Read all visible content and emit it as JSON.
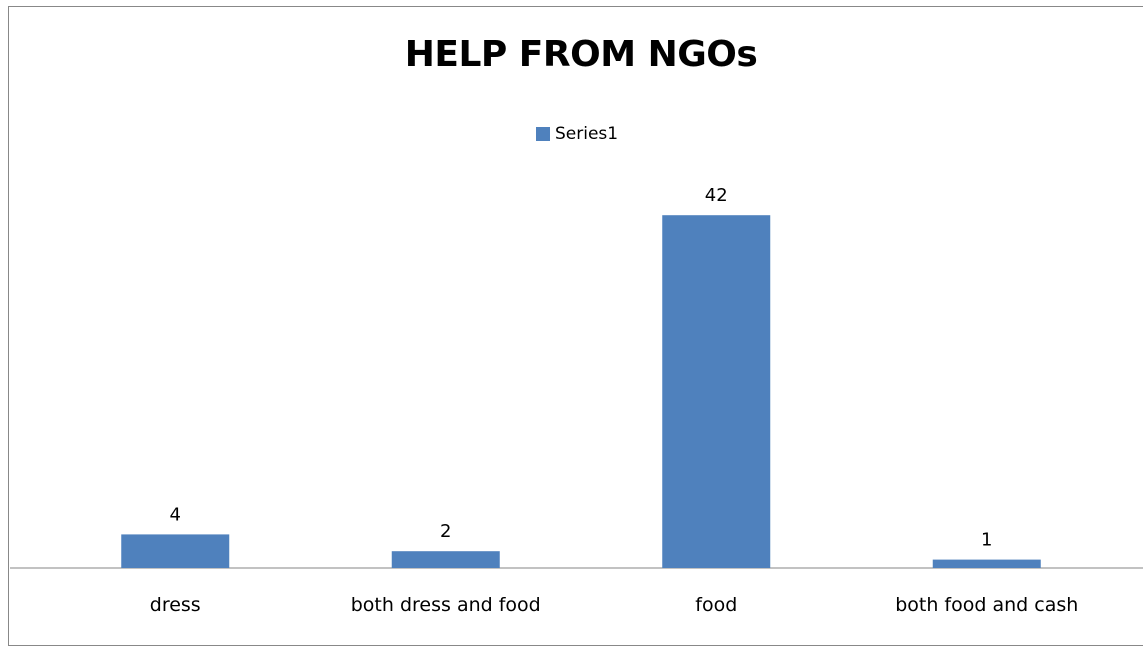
{
  "chart_data": {
    "type": "bar",
    "title": "HELP FROM NGOs",
    "categories": [
      "dress",
      "both dress and food",
      "food",
      "both food and cash"
    ],
    "series": [
      {
        "name": "Series1",
        "values": [
          4,
          2,
          42,
          1
        ],
        "color": "#4F81BD"
      }
    ],
    "data_labels": [
      "4",
      "2",
      "42",
      "1"
    ],
    "legend": {
      "position": "top",
      "entries": [
        "Series1"
      ]
    },
    "ylim": [
      0,
      50
    ],
    "grid": false,
    "xlabel": "",
    "ylabel": ""
  }
}
